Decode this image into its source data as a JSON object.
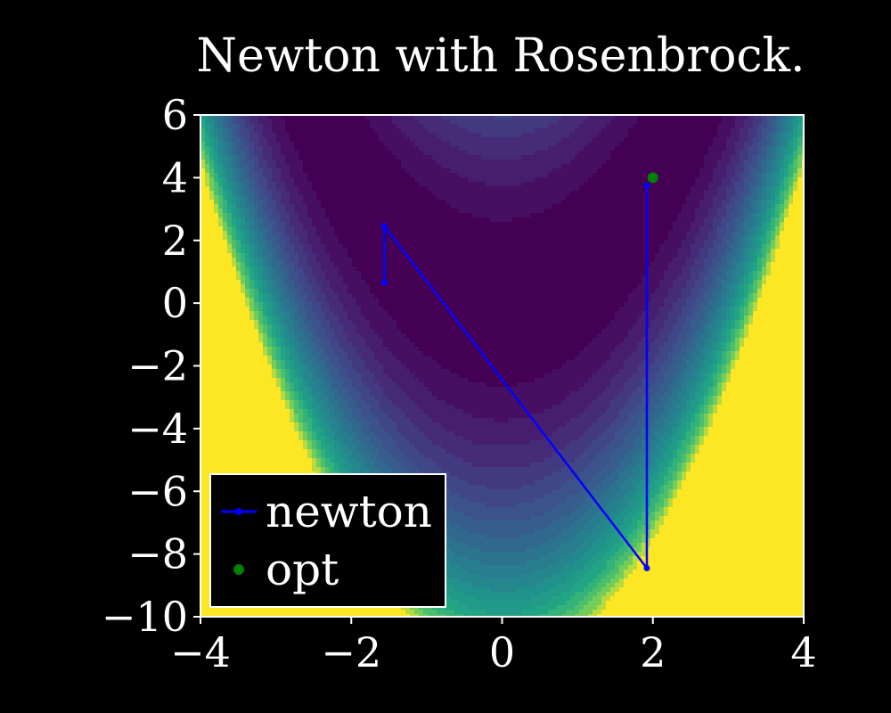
{
  "chart_data": {
    "type": "line",
    "title": "Newton with Rosenbrock.",
    "xlabel": "",
    "ylabel": "",
    "xlim": [
      -4,
      4
    ],
    "ylim": [
      -10,
      6
    ],
    "x_ticks": [
      -4,
      -2,
      0,
      2,
      4
    ],
    "y_ticks": [
      -10,
      -8,
      -6,
      -4,
      -2,
      0,
      2,
      4,
      6
    ],
    "x_tick_labels": [
      "−4",
      "−2",
      "0",
      "2",
      "4"
    ],
    "y_tick_labels": [
      "−10",
      "−8",
      "−6",
      "−4",
      "−2",
      "0",
      "2",
      "4",
      "6"
    ],
    "grid": false,
    "legend_position": "lower-left",
    "background": "filled contour (viridis) of Rosenbrock function f(x,y) = (1-x)^2 + 100(y-x^2)^2",
    "series": [
      {
        "name": "newton",
        "color": "#0000ff",
        "marker": "dot",
        "points": [
          [
            -1.56,
            0.65
          ],
          [
            -1.56,
            2.45
          ],
          [
            1.92,
            -8.45
          ],
          [
            1.92,
            3.75
          ]
        ]
      },
      {
        "name": "opt",
        "color": "#008000",
        "marker": "dot",
        "points": [
          [
            2.0,
            4.0
          ]
        ]
      }
    ]
  }
}
